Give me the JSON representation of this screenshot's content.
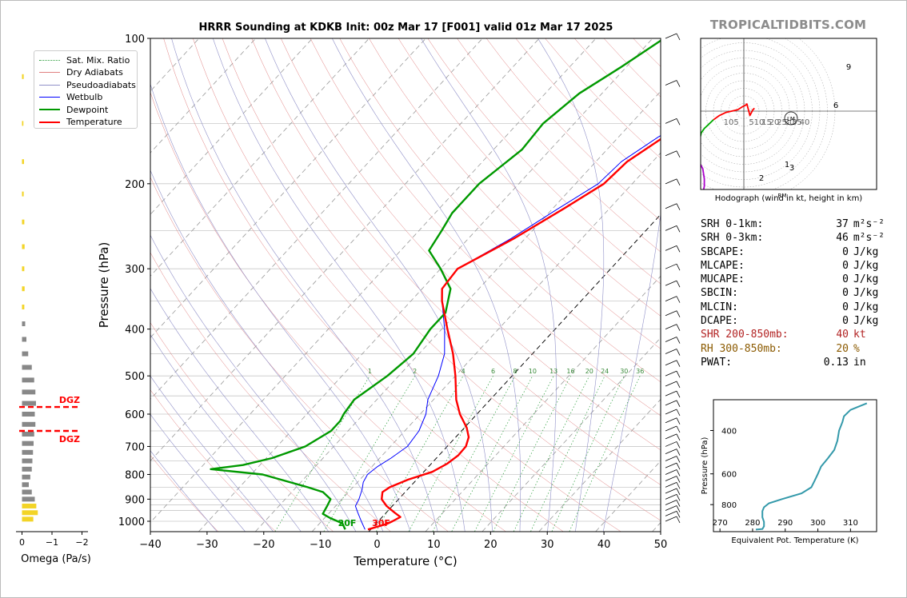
{
  "title": "HRRR Sounding at KDKB Init: 00z Mar 17 [F001] valid 01z Mar 17 2025",
  "brand": "TROPICALTIDBITS.COM",
  "legend": [
    {
      "label": "Sat. Mix. Ratio",
      "color": "#2a9d3a",
      "style": "dotted"
    },
    {
      "label": "Dry Adiabats",
      "color": "#e08080",
      "style": "solid"
    },
    {
      "label": "Pseudoadiabats",
      "color": "#9090c8",
      "style": "solid"
    },
    {
      "label": "Wetbulb",
      "color": "#0000ff",
      "style": "solid"
    },
    {
      "label": "Dewpoint",
      "color": "#009900",
      "style": "thick"
    },
    {
      "label": "Temperature",
      "color": "#ff0000",
      "style": "thick"
    }
  ],
  "chart_data": [
    {
      "type": "line",
      "name": "skew-t",
      "xlabel": "Temperature (°C)",
      "ylabel": "Pressure (hPa)",
      "xlim": [
        -40,
        50
      ],
      "ylim": [
        1050,
        100
      ],
      "yscale": "log",
      "x_ticks": [
        "−40",
        "−30",
        "−20",
        "−10",
        "0",
        "10",
        "20",
        "30",
        "40",
        "50"
      ],
      "y_ticks": [
        "100",
        "200",
        "300",
        "400",
        "500",
        "600",
        "700",
        "800",
        "900",
        "1000"
      ],
      "series": [
        {
          "name": "Temperature",
          "color": "#ff0000",
          "points": [
            [
              1040,
              -0.5
            ],
            [
              1012,
              2
            ],
            [
              1000,
              2.5
            ],
            [
              980,
              3.2
            ],
            [
              960,
              1.5
            ],
            [
              930,
              -1
            ],
            [
              900,
              -3
            ],
            [
              870,
              -4
            ],
            [
              850,
              -3.5
            ],
            [
              820,
              -1.5
            ],
            [
              790,
              1.5
            ],
            [
              760,
              2.8
            ],
            [
              730,
              3.4
            ],
            [
              700,
              3.3
            ],
            [
              670,
              2.3
            ],
            [
              640,
              0.4
            ],
            [
              600,
              -3
            ],
            [
              560,
              -6
            ],
            [
              500,
              -10
            ],
            [
              450,
              -14
            ],
            [
              400,
              -19
            ],
            [
              350,
              -24.5
            ],
            [
              330,
              -26.5
            ],
            [
              300,
              -27
            ],
            [
              260,
              -22
            ],
            [
              225,
              -18
            ],
            [
              200,
              -15
            ],
            [
              180,
              -14.5
            ],
            [
              160,
              -12
            ],
            [
              145,
              -9
            ],
            [
              130,
              -6.5
            ],
            [
              120,
              -5
            ],
            [
              110,
              -4.5
            ],
            [
              100,
              -3.5
            ]
          ]
        },
        {
          "name": "Dewpoint",
          "color": "#009900",
          "points": [
            [
              1040,
              -4.5
            ],
            [
              1010,
              -6
            ],
            [
              985,
              -9
            ],
            [
              965,
              -11
            ],
            [
              930,
              -11.5
            ],
            [
              900,
              -12
            ],
            [
              870,
              -14.5
            ],
            [
              850,
              -18
            ],
            [
              800,
              -28
            ],
            [
              780,
              -38
            ],
            [
              765,
              -33
            ],
            [
              740,
              -29
            ],
            [
              700,
              -25
            ],
            [
              650,
              -23
            ],
            [
              620,
              -23
            ],
            [
              600,
              -23.5
            ],
            [
              560,
              -24
            ],
            [
              500,
              -22
            ],
            [
              450,
              -21
            ],
            [
              400,
              -22
            ],
            [
              370,
              -22
            ],
            [
              330,
              -25
            ],
            [
              300,
              -30
            ],
            [
              275,
              -35
            ],
            [
              250,
              -36
            ],
            [
              230,
              -37
            ],
            [
              200,
              -37
            ],
            [
              170,
              -35
            ],
            [
              150,
              -35.5
            ],
            [
              130,
              -34
            ],
            [
              115,
              -31
            ],
            [
              100,
              -28
            ]
          ]
        },
        {
          "name": "Wetbulb",
          "color": "#0000ff",
          "points": [
            [
              1040,
              -1
            ],
            [
              1000,
              -3
            ],
            [
              960,
              -5
            ],
            [
              930,
              -6.5
            ],
            [
              900,
              -7
            ],
            [
              860,
              -8
            ],
            [
              830,
              -9
            ],
            [
              800,
              -9.5
            ],
            [
              770,
              -9
            ],
            [
              740,
              -8
            ],
            [
              700,
              -7
            ],
            [
              650,
              -7.5
            ],
            [
              600,
              -9
            ],
            [
              560,
              -11
            ],
            [
              500,
              -13
            ],
            [
              450,
              -15.5
            ],
            [
              400,
              -19.5
            ],
            [
              350,
              -24.5
            ],
            [
              330,
              -26.5
            ],
            [
              300,
              -27
            ],
            [
              260,
              -22.5
            ],
            [
              225,
              -19
            ],
            [
              200,
              -16
            ],
            [
              180,
              -15.5
            ],
            [
              160,
              -13
            ],
            [
              145,
              -10
            ],
            [
              130,
              -7.5
            ],
            [
              120,
              -6
            ],
            [
              110,
              -5
            ],
            [
              100,
              -3.5
            ]
          ]
        }
      ],
      "annotations": [
        {
          "text": "20F",
          "color": "#009900"
        },
        {
          "text": "30F",
          "color": "#ff0000"
        }
      ],
      "mixing_ratio_labels": [
        "1",
        "2",
        "4",
        "6",
        "8",
        "10",
        "13",
        "16",
        "20",
        "24",
        "30",
        "36"
      ]
    },
    {
      "type": "bar",
      "name": "omega",
      "xlabel": "Omega (Pa/s)",
      "x_ticks": [
        "0",
        "−1",
        "−2"
      ],
      "xlim": [
        0.2,
        -2.2
      ],
      "dgz_label": "DGZ",
      "dgz_pressures": [
        580,
        650
      ],
      "levels": [
        120,
        150,
        180,
        210,
        240,
        270,
        300,
        330,
        360,
        390,
        420,
        450,
        480,
        510,
        540,
        570,
        600,
        630,
        660,
        690,
        720,
        750,
        780,
        810,
        840,
        870,
        900,
        930,
        960,
        990
      ],
      "values": [
        -0.03,
        -0.02,
        -0.04,
        -0.03,
        -0.05,
        -0.06,
        -0.05,
        -0.06,
        -0.05,
        -0.08,
        -0.12,
        -0.18,
        -0.3,
        -0.38,
        -0.42,
        -0.44,
        -0.4,
        -0.42,
        -0.38,
        -0.36,
        -0.34,
        -0.32,
        -0.3,
        -0.25,
        -0.2,
        -0.3,
        -0.4,
        -0.45,
        -0.5,
        -0.35
      ]
    },
    {
      "type": "line",
      "name": "hodograph",
      "xlabel": "Hodograph (wind in kt, height in km)",
      "ring_labels": [
        "10",
        "5",
        "5",
        "10",
        "15",
        "20",
        "25",
        "30",
        "35",
        "40"
      ],
      "height_labels": [
        "1",
        "2",
        "3",
        "6",
        "9"
      ],
      "storm_labels": [
        "LM",
        "RM"
      ],
      "segments": [
        {
          "color": "#ff0000",
          "points": [
            [
              2,
              -7
            ],
            [
              1,
              -6
            ],
            [
              -3,
              -4
            ],
            [
              5,
              -2
            ],
            [
              4,
              -1
            ],
            [
              3,
              1
            ],
            [
              1,
              4
            ],
            [
              0,
              8
            ],
            [
              -1,
              12
            ],
            [
              -3,
              16
            ],
            [
              -6,
              20
            ]
          ]
        },
        {
          "color": "#00aa00",
          "points": [
            [
              -6,
              20
            ],
            [
              -12,
              26
            ],
            [
              -15,
              28
            ],
            [
              -24,
              30
            ],
            [
              -28,
              31
            ],
            [
              -32,
              31
            ],
            [
              -36,
              29
            ]
          ]
        },
        {
          "color": "#aa00cc",
          "points": [
            [
              -36,
              29
            ],
            [
              -40,
              27
            ],
            [
              -47,
              26
            ],
            [
              -52,
              26
            ],
            [
              -57,
              27
            ],
            [
              -62,
              30
            ],
            [
              -60,
              34
            ],
            [
              -56,
              39
            ],
            [
              -50,
              31
            ]
          ]
        },
        {
          "color": "#0000ff",
          "points": [
            [
              -50,
              31
            ],
            [
              -48,
              32
            ],
            [
              -44,
              33
            ],
            [
              -43,
              34
            ],
            [
              -45,
              34
            ],
            [
              -47,
              33
            ]
          ]
        }
      ]
    },
    {
      "type": "line",
      "name": "theta-e",
      "xlabel": "Equivalent Pot. Temperature (K)",
      "ylabel": "Pressure (hPa)",
      "x_ticks": [
        "270",
        "280",
        "290",
        "300",
        "310"
      ],
      "y_ticks": [
        "400",
        "600",
        "800"
      ],
      "xlim": [
        268,
        318
      ],
      "ylim": [
        1030,
        300
      ],
      "series": [
        {
          "name": "theta-e",
          "color": "#3399aa",
          "points": [
            [
              1010,
              281
            ],
            [
              1005,
              283
            ],
            [
              980,
              283.5
            ],
            [
              940,
              283.5
            ],
            [
              900,
              283
            ],
            [
              850,
              283
            ],
            [
              820,
              283.5
            ],
            [
              790,
              285
            ],
            [
              760,
              289
            ],
            [
              720,
              295
            ],
            [
              680,
              298
            ],
            [
              640,
              299
            ],
            [
              600,
              300
            ],
            [
              560,
              301
            ],
            [
              520,
              303
            ],
            [
              480,
              305
            ],
            [
              440,
              306
            ],
            [
              400,
              306.5
            ],
            [
              370,
              307.5
            ],
            [
              350,
              308
            ],
            [
              330,
              310
            ],
            [
              310,
              315
            ]
          ]
        }
      ]
    }
  ],
  "stats": [
    {
      "label": "SRH 0-1km:",
      "value": "37",
      "unit": "m²s⁻²",
      "color": "#000000"
    },
    {
      "label": "SRH 0-3km:",
      "value": "46",
      "unit": "m²s⁻²",
      "color": "#000000"
    },
    {
      "label": "SBCAPE:",
      "value": "0",
      "unit": "J/kg",
      "color": "#000000"
    },
    {
      "label": "MLCAPE:",
      "value": "0",
      "unit": "J/kg",
      "color": "#000000"
    },
    {
      "label": "MUCAPE:",
      "value": "0",
      "unit": "J/kg",
      "color": "#000000"
    },
    {
      "label": "SBCIN:",
      "value": "0",
      "unit": "J/kg",
      "color": "#000000"
    },
    {
      "label": "MLCIN:",
      "value": "0",
      "unit": "J/kg",
      "color": "#000000"
    },
    {
      "label": "DCAPE:",
      "value": "0",
      "unit": "J/kg",
      "color": "#000000"
    },
    {
      "label": "SHR 200-850mb:",
      "value": "40",
      "unit": "kt",
      "color": "#b22222"
    },
    {
      "label": "RH 300-850mb:",
      "value": "20",
      "unit": "%",
      "color": "#8b5a00"
    },
    {
      "label": "PWAT:",
      "value": "0.13",
      "unit": "in",
      "color": "#000000"
    }
  ]
}
